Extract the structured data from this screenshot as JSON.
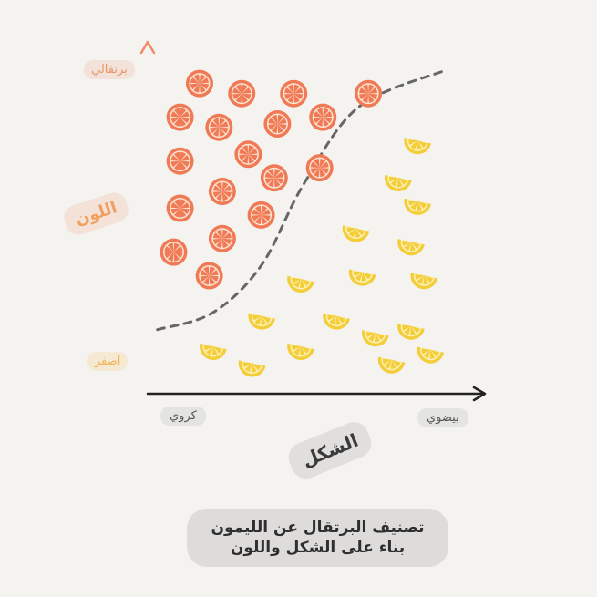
{
  "chart_data": {
    "type": "scatter",
    "title_line1": "تصنيف البرتقال عن الليمون",
    "title_line2": "بناء على الشكل واللون",
    "xlabel": "الشكل",
    "ylabel": "اللون",
    "x_ticks": {
      "low": "كروي",
      "high": "بيضوي"
    },
    "y_ticks": {
      "low": "اصفر",
      "high": "برتقالي"
    },
    "xlim": [
      0,
      1
    ],
    "ylim": [
      0,
      1
    ],
    "grid": false,
    "series": [
      {
        "kind": "orange-slice",
        "color": "#f07a55",
        "points": [
          [
            0.16,
            0.92
          ],
          [
            0.29,
            0.89
          ],
          [
            0.45,
            0.89
          ],
          [
            0.68,
            0.89
          ],
          [
            0.1,
            0.82
          ],
          [
            0.22,
            0.79
          ],
          [
            0.4,
            0.8
          ],
          [
            0.54,
            0.82
          ],
          [
            0.1,
            0.69
          ],
          [
            0.31,
            0.71
          ],
          [
            0.39,
            0.64
          ],
          [
            0.53,
            0.67
          ],
          [
            0.23,
            0.6
          ],
          [
            0.1,
            0.55
          ],
          [
            0.35,
            0.53
          ],
          [
            0.23,
            0.46
          ],
          [
            0.08,
            0.42
          ],
          [
            0.19,
            0.35
          ]
        ]
      },
      {
        "kind": "lemon-slice",
        "color": "#f3cd3a",
        "points": [
          [
            0.83,
            0.74
          ],
          [
            0.77,
            0.63
          ],
          [
            0.83,
            0.56
          ],
          [
            0.64,
            0.48
          ],
          [
            0.81,
            0.44
          ],
          [
            0.66,
            0.35
          ],
          [
            0.85,
            0.34
          ],
          [
            0.47,
            0.33
          ],
          [
            0.35,
            0.22
          ],
          [
            0.58,
            0.22
          ],
          [
            0.81,
            0.19
          ],
          [
            0.7,
            0.17
          ],
          [
            0.2,
            0.13
          ],
          [
            0.47,
            0.13
          ],
          [
            0.87,
            0.12
          ],
          [
            0.75,
            0.09
          ],
          [
            0.32,
            0.08
          ]
        ]
      }
    ],
    "decision_boundary": {
      "style": "dashed",
      "color": "#666666",
      "points": [
        [
          0.03,
          0.19
        ],
        [
          0.2,
          0.24
        ],
        [
          0.35,
          0.38
        ],
        [
          0.48,
          0.62
        ],
        [
          0.65,
          0.85
        ],
        [
          0.92,
          0.96
        ]
      ]
    },
    "axis_colors": {
      "y_top": "#f08a6c",
      "y_bottom": "#f7c35a",
      "x": "#222222"
    }
  }
}
